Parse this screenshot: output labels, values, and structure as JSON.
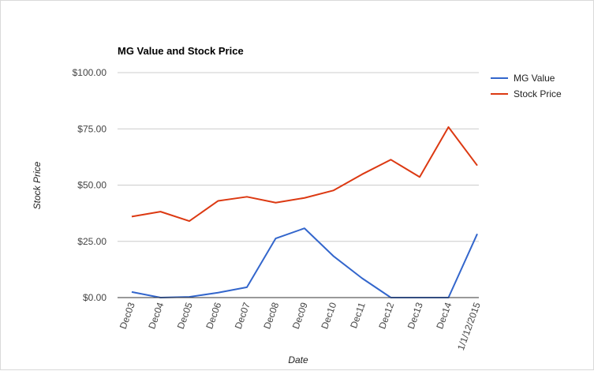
{
  "chart_data": {
    "type": "line",
    "title": "MG Value and Stock Price",
    "xlabel": "Date",
    "ylabel": "Stock Price",
    "categories": [
      "Dec03",
      "Dec04",
      "Dec05",
      "Dec06",
      "Dec07",
      "Dec08",
      "Dec09",
      "Dec10",
      "Dec11",
      "Dec12",
      "Dec13",
      "Dec14",
      "1/1/12/2015"
    ],
    "ylim": [
      0,
      100
    ],
    "yticks": [
      "$0.00",
      "$25.00",
      "$50.00",
      "$75.00",
      "$100.00"
    ],
    "grid": true,
    "legend_position": "right",
    "series": [
      {
        "name": "MG Value",
        "color": "#3366cc",
        "values": [
          2.5,
          0.0,
          0.3,
          2.2,
          4.6,
          26.3,
          30.8,
          18.5,
          8.6,
          0.0,
          0.0,
          0.0,
          28.3
        ]
      },
      {
        "name": "Stock Price",
        "color": "#dc3912",
        "values": [
          36.0,
          38.2,
          34.0,
          43.0,
          44.8,
          42.2,
          44.3,
          47.6,
          54.8,
          61.3,
          53.6,
          75.8,
          58.7
        ]
      }
    ]
  }
}
